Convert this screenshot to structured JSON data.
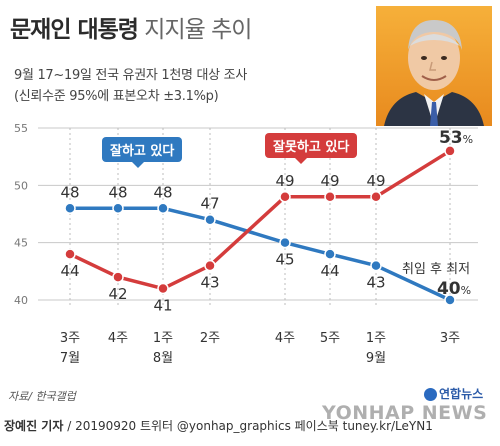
{
  "header": {
    "title_bold": "문재인 대통령",
    "title_light": "지지율 추이",
    "subtitle_line1": "9월 17~19일 전국 유권자 1천명 대상 조사",
    "subtitle_line2": "(신뢰수준 95%에 표본오차 ±3.1%p)"
  },
  "annotations": {
    "good_label": "잘하고 있다",
    "bad_label": "잘못하고 있다",
    "record_note": "취임 후 최저"
  },
  "source": "자료/ 한국갤럽",
  "footer": {
    "reporter": "장예진 기자",
    "rest": " / 20190920 트위터 @yonhap_graphics  페이스북 tuney.kr/LeYN1"
  },
  "logo": {
    "label": "연합뉴스"
  },
  "watermark": "YONHAP NEWS",
  "colors": {
    "good": "#2f79c0",
    "bad": "#d43c3c",
    "grid": "#c8c8c8"
  },
  "chart_data": {
    "type": "line",
    "categories": [
      {
        "week": "3주",
        "month": "7월"
      },
      {
        "week": "4주",
        "month": ""
      },
      {
        "week": "1주",
        "month": "8월"
      },
      {
        "week": "2주",
        "month": ""
      },
      {
        "week": "4주",
        "month": ""
      },
      {
        "week": "5주",
        "month": ""
      },
      {
        "week": "1주",
        "month": "9월"
      },
      {
        "week": "3주",
        "month": ""
      }
    ],
    "series": [
      {
        "name": "잘하고 있다",
        "values": [
          48,
          48,
          48,
          47,
          45,
          44,
          43,
          40
        ],
        "color": "#2f79c0"
      },
      {
        "name": "잘못하고 있다",
        "values": [
          44,
          42,
          41,
          43,
          49,
          49,
          49,
          53
        ],
        "color": "#d43c3c"
      }
    ],
    "last_value_unit": "%",
    "ylim": [
      40,
      55
    ],
    "yticks": [
      40,
      45,
      50,
      55
    ],
    "grid": "horizontal"
  }
}
